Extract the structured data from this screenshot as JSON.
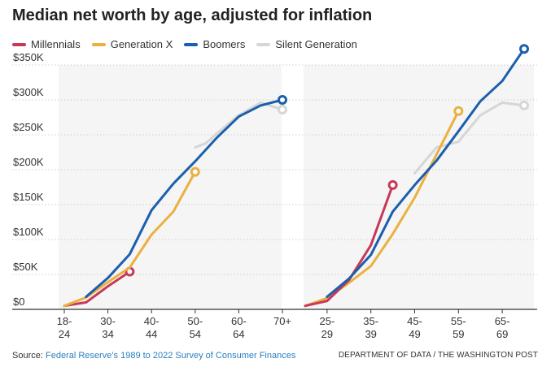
{
  "title": "Median net worth by age, adjusted for inflation",
  "legend": [
    {
      "label": "Millennials",
      "color": "#c8385a"
    },
    {
      "label": "Generation X",
      "color": "#ebb040"
    },
    {
      "label": "Boomers",
      "color": "#1b5fad"
    },
    {
      "label": "Silent Generation",
      "color": "#d6d6d6"
    }
  ],
  "source_label": "Source:",
  "source_text": "Federal Reserve’s 1989 to 2022 Survey of Consumer Finances",
  "credit": "DEPARTMENT OF DATA / THE WASHINGTON POST",
  "chart_data": [
    {
      "type": "line",
      "title": "Median net worth by age, adjusted for inflation",
      "ylim": [
        0,
        350000
      ],
      "yticks": [
        0,
        50000,
        100000,
        150000,
        200000,
        250000,
        300000,
        350000
      ],
      "ytick_labels": [
        "$0",
        "$50K",
        "$100K",
        "$150K",
        "$200K",
        "$250K",
        "$300K",
        "$350K"
      ],
      "xlim": [
        0,
        10.3
      ],
      "xticks": [
        {
          "x": 0,
          "line1": "18-",
          "line2": "24"
        },
        {
          "x": 2,
          "line1": "30-",
          "line2": "34"
        },
        {
          "x": 4,
          "line1": "40-",
          "line2": "44"
        },
        {
          "x": 6,
          "line1": "50-",
          "line2": "54"
        },
        {
          "x": 8,
          "line1": "60-",
          "line2": "64"
        },
        {
          "x": 10,
          "line1": "70+",
          "line2": ""
        }
      ],
      "series": [
        {
          "name": "Silent Generation",
          "color": "#d6d6d6",
          "points": [
            [
              6.0,
              232000
            ],
            [
              6.5,
              238000
            ],
            [
              7.0,
              252000
            ],
            [
              8.0,
              278000
            ],
            [
              9.0,
              296000
            ],
            [
              10.0,
              286000
            ]
          ],
          "end_marker": true
        },
        {
          "name": "Millennials",
          "color": "#c8385a",
          "points": [
            [
              0.0,
              5000
            ],
            [
              1.0,
              10000
            ],
            [
              2.0,
              33000
            ],
            [
              3.0,
              54000
            ]
          ],
          "end_marker": true
        },
        {
          "name": "Generation X",
          "color": "#ebb040",
          "points": [
            [
              0.0,
              5000
            ],
            [
              1.0,
              17000
            ],
            [
              2.0,
              39000
            ],
            [
              3.0,
              60000
            ],
            [
              4.0,
              107000
            ],
            [
              5.0,
              140000
            ],
            [
              6.0,
              197000
            ]
          ],
          "end_marker": true
        },
        {
          "name": "Boomers",
          "color": "#1b5fad",
          "points": [
            [
              1.0,
              18000
            ],
            [
              2.0,
              45000
            ],
            [
              3.0,
              79000
            ],
            [
              4.0,
              142000
            ],
            [
              5.0,
              180000
            ],
            [
              6.0,
              212000
            ],
            [
              7.0,
              246000
            ],
            [
              8.0,
              276000
            ],
            [
              9.0,
              292000
            ],
            [
              10.0,
              300000
            ]
          ],
          "end_marker": true
        }
      ]
    },
    {
      "type": "line",
      "ylim": [
        0,
        350000
      ],
      "xlim": [
        0,
        10.3
      ],
      "xticks": [
        {
          "x": 1,
          "line1": "25-",
          "line2": "29"
        },
        {
          "x": 3,
          "line1": "35-",
          "line2": "39"
        },
        {
          "x": 5,
          "line1": "45-",
          "line2": "49"
        },
        {
          "x": 7,
          "line1": "55-",
          "line2": "59"
        },
        {
          "x": 9,
          "line1": "65-",
          "line2": "69"
        }
      ],
      "series": [
        {
          "name": "Silent Generation",
          "color": "#d6d6d6",
          "points": [
            [
              5.0,
              195000
            ],
            [
              6.0,
              232000
            ],
            [
              7.0,
              240000
            ],
            [
              8.0,
              278000
            ],
            [
              9.0,
              296000
            ],
            [
              10.0,
              292000
            ]
          ],
          "end_marker": true
        },
        {
          "name": "Generation X",
          "color": "#ebb040",
          "points": [
            [
              0.0,
              5000
            ],
            [
              1.0,
              16000
            ],
            [
              2.0,
              38000
            ],
            [
              3.0,
              62000
            ],
            [
              4.0,
              108000
            ],
            [
              5.0,
              160000
            ],
            [
              6.0,
              222000
            ],
            [
              7.0,
              284000
            ]
          ],
          "end_marker": true
        },
        {
          "name": "Millennials",
          "color": "#c8385a",
          "points": [
            [
              0.0,
              5000
            ],
            [
              1.0,
              12000
            ],
            [
              2.0,
              42000
            ],
            [
              3.0,
              92000
            ],
            [
              4.0,
              178000
            ]
          ],
          "end_marker": true
        },
        {
          "name": "Boomers",
          "color": "#1b5fad",
          "points": [
            [
              1.0,
              18000
            ],
            [
              2.0,
              44000
            ],
            [
              3.0,
              78000
            ],
            [
              4.0,
              140000
            ],
            [
              5.0,
              178000
            ],
            [
              6.0,
              213000
            ],
            [
              7.0,
              255000
            ],
            [
              8.0,
              298000
            ],
            [
              9.0,
              327000
            ],
            [
              10.0,
              373000
            ]
          ],
          "end_marker": true
        }
      ]
    }
  ]
}
